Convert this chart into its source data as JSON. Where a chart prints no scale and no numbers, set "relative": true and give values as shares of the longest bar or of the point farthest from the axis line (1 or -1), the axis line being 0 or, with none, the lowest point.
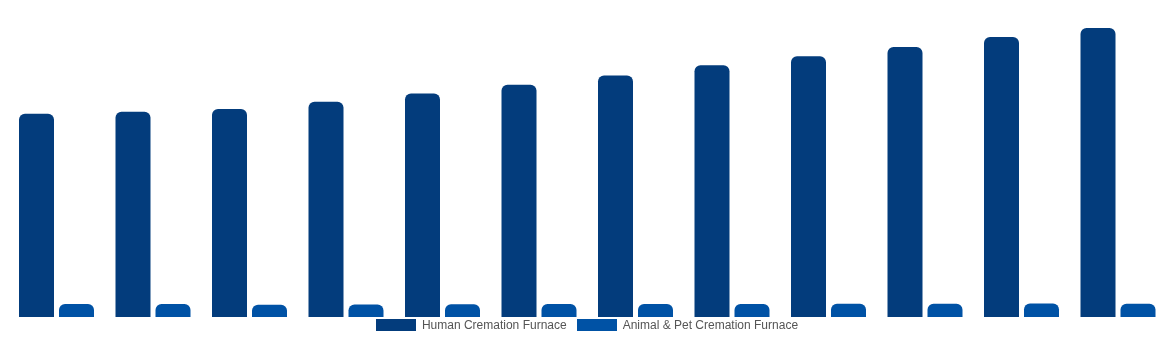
{
  "chart_data": {
    "type": "bar",
    "relative": true,
    "legend": "bottom",
    "categories": [
      null,
      null,
      null,
      null,
      null,
      null,
      null,
      null,
      null,
      null,
      null,
      null
    ],
    "series": [
      {
        "name": "Human Cremation Furnace",
        "color": "#033c7c",
        "values": [
          0.703,
          0.71,
          0.72,
          0.745,
          0.773,
          0.804,
          0.836,
          0.871,
          0.902,
          0.934,
          0.969,
          1
        ]
      },
      {
        "name": "Animal & Pet Cremation Furnace",
        "color": "#0052a5",
        "values": [
          0.045,
          0.045,
          0.042,
          0.043,
          0.044,
          0.045,
          0.045,
          0.045,
          0.046,
          0.046,
          0.047,
          0.046
        ]
      }
    ]
  }
}
